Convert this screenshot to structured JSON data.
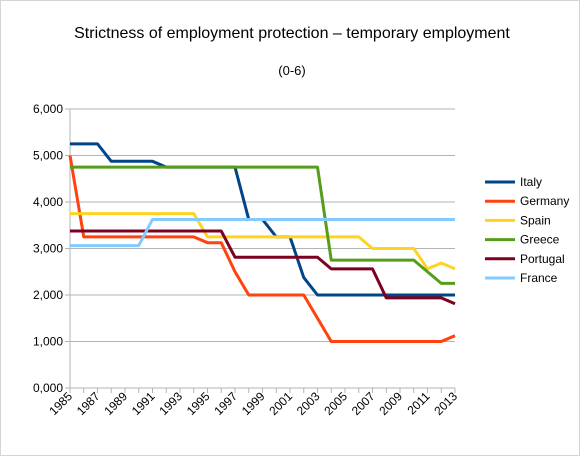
{
  "chart_data": {
    "type": "line",
    "title": "Strictness of employment protection – temporary employment",
    "subtitle": "(0-6)",
    "xlabel": "",
    "ylabel": "",
    "ylim": [
      0,
      6
    ],
    "yticks": [
      "0,000",
      "1,000",
      "2,000",
      "3,000",
      "4,000",
      "5,000",
      "6,000"
    ],
    "xtick_labels": [
      "1985",
      "1987",
      "1989",
      "1991",
      "1993",
      "1995",
      "1997",
      "1999",
      "2001",
      "2003",
      "2005",
      "2007",
      "2009",
      "2011",
      "2013"
    ],
    "grid": "horizontal",
    "legend": "right",
    "x": [
      1985,
      1986,
      1987,
      1988,
      1989,
      1990,
      1991,
      1992,
      1993,
      1994,
      1995,
      1996,
      1997,
      1998,
      1999,
      2000,
      2001,
      2002,
      2003,
      2004,
      2005,
      2006,
      2007,
      2008,
      2009,
      2010,
      2011,
      2012,
      2013
    ],
    "series": [
      {
        "name": "Italy",
        "color": "#004586",
        "values": [
          5.25,
          5.25,
          5.25,
          4.875,
          4.875,
          4.875,
          4.875,
          4.75,
          4.75,
          4.75,
          4.75,
          4.75,
          4.75,
          3.625,
          3.625,
          3.25,
          3.25,
          2.375,
          2.0,
          2.0,
          2.0,
          2.0,
          2.0,
          2.0,
          2.0,
          2.0,
          2.0,
          2.0,
          2.0
        ]
      },
      {
        "name": "Germany",
        "color": "#ff420e",
        "values": [
          5.0,
          3.25,
          3.25,
          3.25,
          3.25,
          3.25,
          3.25,
          3.25,
          3.25,
          3.25,
          3.125,
          3.125,
          2.5,
          2.0,
          2.0,
          2.0,
          2.0,
          2.0,
          1.5,
          1.0,
          1.0,
          1.0,
          1.0,
          1.0,
          1.0,
          1.0,
          1.0,
          1.0,
          1.125
        ]
      },
      {
        "name": "Spain",
        "color": "#ffd320",
        "values": [
          3.75,
          3.75,
          3.75,
          3.75,
          3.75,
          3.75,
          3.75,
          3.75,
          3.75,
          3.75,
          3.25,
          3.25,
          3.25,
          3.25,
          3.25,
          3.25,
          3.25,
          3.25,
          3.25,
          3.25,
          3.25,
          3.25,
          3.0,
          3.0,
          3.0,
          3.0,
          2.5625,
          2.6875,
          2.5625
        ]
      },
      {
        "name": "Greece",
        "color": "#579d1c",
        "values": [
          4.75,
          4.75,
          4.75,
          4.75,
          4.75,
          4.75,
          4.75,
          4.75,
          4.75,
          4.75,
          4.75,
          4.75,
          4.75,
          4.75,
          4.75,
          4.75,
          4.75,
          4.75,
          4.75,
          2.75,
          2.75,
          2.75,
          2.75,
          2.75,
          2.75,
          2.75,
          2.5,
          2.25,
          2.25
        ]
      },
      {
        "name": "Portugal",
        "color": "#7e0021",
        "values": [
          3.375,
          3.375,
          3.375,
          3.375,
          3.375,
          3.375,
          3.375,
          3.375,
          3.375,
          3.375,
          3.375,
          3.375,
          2.8125,
          2.8125,
          2.8125,
          2.8125,
          2.8125,
          2.8125,
          2.8125,
          2.5625,
          2.5625,
          2.5625,
          2.5625,
          1.9375,
          1.9375,
          1.9375,
          1.9375,
          1.9375,
          1.8125
        ]
      },
      {
        "name": "France",
        "color": "#83caff",
        "values": [
          3.0625,
          3.0625,
          3.0625,
          3.0625,
          3.0625,
          3.0625,
          3.625,
          3.625,
          3.625,
          3.625,
          3.625,
          3.625,
          3.625,
          3.625,
          3.625,
          3.625,
          3.625,
          3.625,
          3.625,
          3.625,
          3.625,
          3.625,
          3.625,
          3.625,
          3.625,
          3.625,
          3.625,
          3.625,
          3.625
        ]
      }
    ]
  }
}
